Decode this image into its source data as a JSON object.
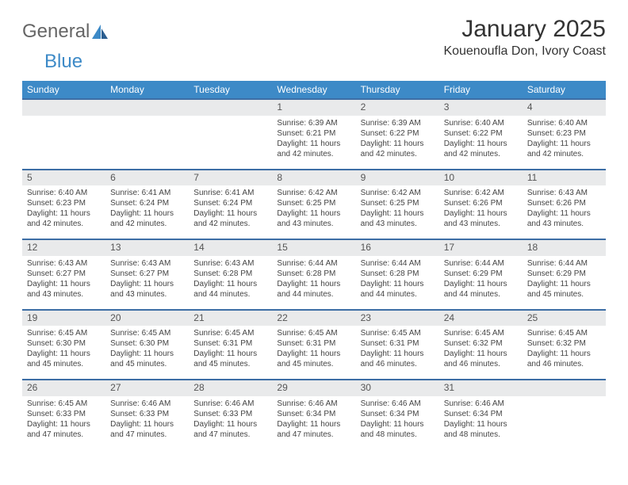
{
  "brand": {
    "part1": "General",
    "part2": "Blue"
  },
  "title": "January 2025",
  "location": "Kouenoufla Don, Ivory Coast",
  "weekdays": [
    "Sunday",
    "Monday",
    "Tuesday",
    "Wednesday",
    "Thursday",
    "Friday",
    "Saturday"
  ],
  "colors": {
    "header_bg": "#3d8ac7",
    "header_text": "#ffffff",
    "daynum_bg": "#e9eaeb",
    "daynum_border": "#3d6ea5",
    "body_text": "#444444",
    "page_bg": "#ffffff"
  },
  "weeks": [
    {
      "days": [
        null,
        null,
        null,
        {
          "num": "1",
          "sunrise": "6:39 AM",
          "sunset": "6:21 PM",
          "daylight": "11 hours and 42 minutes."
        },
        {
          "num": "2",
          "sunrise": "6:39 AM",
          "sunset": "6:22 PM",
          "daylight": "11 hours and 42 minutes."
        },
        {
          "num": "3",
          "sunrise": "6:40 AM",
          "sunset": "6:22 PM",
          "daylight": "11 hours and 42 minutes."
        },
        {
          "num": "4",
          "sunrise": "6:40 AM",
          "sunset": "6:23 PM",
          "daylight": "11 hours and 42 minutes."
        }
      ]
    },
    {
      "days": [
        {
          "num": "5",
          "sunrise": "6:40 AM",
          "sunset": "6:23 PM",
          "daylight": "11 hours and 42 minutes."
        },
        {
          "num": "6",
          "sunrise": "6:41 AM",
          "sunset": "6:24 PM",
          "daylight": "11 hours and 42 minutes."
        },
        {
          "num": "7",
          "sunrise": "6:41 AM",
          "sunset": "6:24 PM",
          "daylight": "11 hours and 42 minutes."
        },
        {
          "num": "8",
          "sunrise": "6:42 AM",
          "sunset": "6:25 PM",
          "daylight": "11 hours and 43 minutes."
        },
        {
          "num": "9",
          "sunrise": "6:42 AM",
          "sunset": "6:25 PM",
          "daylight": "11 hours and 43 minutes."
        },
        {
          "num": "10",
          "sunrise": "6:42 AM",
          "sunset": "6:26 PM",
          "daylight": "11 hours and 43 minutes."
        },
        {
          "num": "11",
          "sunrise": "6:43 AM",
          "sunset": "6:26 PM",
          "daylight": "11 hours and 43 minutes."
        }
      ]
    },
    {
      "days": [
        {
          "num": "12",
          "sunrise": "6:43 AM",
          "sunset": "6:27 PM",
          "daylight": "11 hours and 43 minutes."
        },
        {
          "num": "13",
          "sunrise": "6:43 AM",
          "sunset": "6:27 PM",
          "daylight": "11 hours and 43 minutes."
        },
        {
          "num": "14",
          "sunrise": "6:43 AM",
          "sunset": "6:28 PM",
          "daylight": "11 hours and 44 minutes."
        },
        {
          "num": "15",
          "sunrise": "6:44 AM",
          "sunset": "6:28 PM",
          "daylight": "11 hours and 44 minutes."
        },
        {
          "num": "16",
          "sunrise": "6:44 AM",
          "sunset": "6:28 PM",
          "daylight": "11 hours and 44 minutes."
        },
        {
          "num": "17",
          "sunrise": "6:44 AM",
          "sunset": "6:29 PM",
          "daylight": "11 hours and 44 minutes."
        },
        {
          "num": "18",
          "sunrise": "6:44 AM",
          "sunset": "6:29 PM",
          "daylight": "11 hours and 45 minutes."
        }
      ]
    },
    {
      "days": [
        {
          "num": "19",
          "sunrise": "6:45 AM",
          "sunset": "6:30 PM",
          "daylight": "11 hours and 45 minutes."
        },
        {
          "num": "20",
          "sunrise": "6:45 AM",
          "sunset": "6:30 PM",
          "daylight": "11 hours and 45 minutes."
        },
        {
          "num": "21",
          "sunrise": "6:45 AM",
          "sunset": "6:31 PM",
          "daylight": "11 hours and 45 minutes."
        },
        {
          "num": "22",
          "sunrise": "6:45 AM",
          "sunset": "6:31 PM",
          "daylight": "11 hours and 45 minutes."
        },
        {
          "num": "23",
          "sunrise": "6:45 AM",
          "sunset": "6:31 PM",
          "daylight": "11 hours and 46 minutes."
        },
        {
          "num": "24",
          "sunrise": "6:45 AM",
          "sunset": "6:32 PM",
          "daylight": "11 hours and 46 minutes."
        },
        {
          "num": "25",
          "sunrise": "6:45 AM",
          "sunset": "6:32 PM",
          "daylight": "11 hours and 46 minutes."
        }
      ]
    },
    {
      "days": [
        {
          "num": "26",
          "sunrise": "6:45 AM",
          "sunset": "6:33 PM",
          "daylight": "11 hours and 47 minutes."
        },
        {
          "num": "27",
          "sunrise": "6:46 AM",
          "sunset": "6:33 PM",
          "daylight": "11 hours and 47 minutes."
        },
        {
          "num": "28",
          "sunrise": "6:46 AM",
          "sunset": "6:33 PM",
          "daylight": "11 hours and 47 minutes."
        },
        {
          "num": "29",
          "sunrise": "6:46 AM",
          "sunset": "6:34 PM",
          "daylight": "11 hours and 47 minutes."
        },
        {
          "num": "30",
          "sunrise": "6:46 AM",
          "sunset": "6:34 PM",
          "daylight": "11 hours and 48 minutes."
        },
        {
          "num": "31",
          "sunrise": "6:46 AM",
          "sunset": "6:34 PM",
          "daylight": "11 hours and 48 minutes."
        },
        null
      ]
    }
  ],
  "labels": {
    "sunrise": "Sunrise:",
    "sunset": "Sunset:",
    "daylight": "Daylight:"
  }
}
